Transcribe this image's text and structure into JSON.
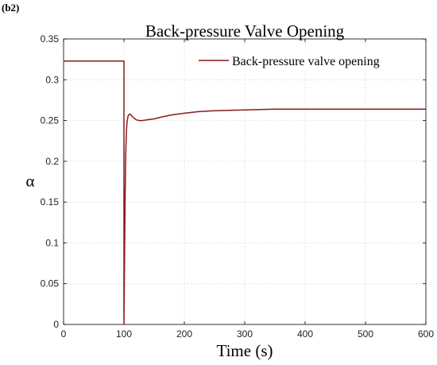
{
  "panel_label": "(b2)",
  "chart_data": {
    "type": "line",
    "title": "Back-pressure Valve Opening",
    "xlabel": "Time (s)",
    "ylabel": "α",
    "xlim": [
      0,
      600
    ],
    "ylim": [
      0,
      0.35
    ],
    "xticks": [
      0,
      100,
      200,
      300,
      400,
      500,
      600
    ],
    "yticks": [
      0,
      0.05,
      0.1,
      0.15,
      0.2,
      0.25,
      0.3,
      0.35
    ],
    "ytick_labels": [
      "0",
      "0.05",
      "0.1",
      "0.15",
      "0.2",
      "0.25",
      "0.3",
      "0.35"
    ],
    "grid": true,
    "legend_position": "top-right",
    "series": [
      {
        "name": "Back-pressure valve opening",
        "color": "#8b1a1a",
        "x": [
          0,
          100,
          100,
          101,
          102,
          103,
          104,
          105,
          107,
          110,
          115,
          120,
          125,
          130,
          140,
          150,
          160,
          180,
          200,
          225,
          250,
          300,
          350,
          400,
          500,
          600
        ],
        "y": [
          0.323,
          0.323,
          0.0,
          0.08,
          0.16,
          0.21,
          0.235,
          0.248,
          0.256,
          0.258,
          0.254,
          0.251,
          0.25,
          0.25,
          0.251,
          0.252,
          0.254,
          0.257,
          0.259,
          0.261,
          0.262,
          0.263,
          0.264,
          0.264,
          0.264,
          0.264
        ]
      }
    ]
  }
}
